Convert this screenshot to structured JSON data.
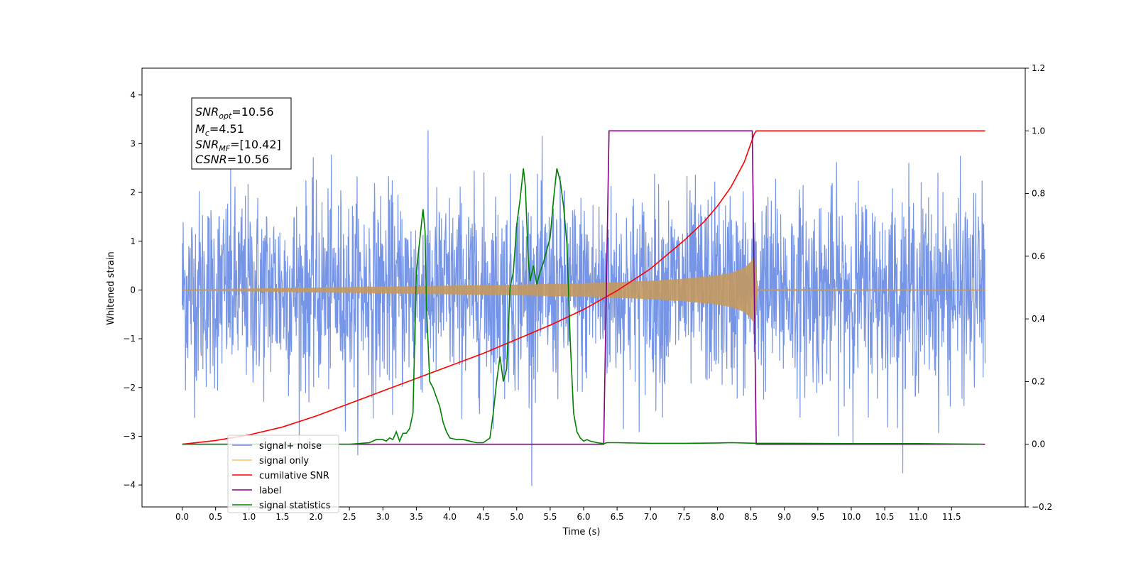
{
  "chart_data": {
    "type": "line",
    "title": "",
    "xlabel": "Time (s)",
    "ylabel": "Whitened strain",
    "xlim": [
      -0.6,
      12.6
    ],
    "ylim": [
      -4.45,
      4.55
    ],
    "y2lim": [
      -0.2,
      1.2
    ],
    "grid": false,
    "legend_position": "lower-left",
    "x_ticks": [
      "0.0",
      "0.5",
      "1.0",
      "1.5",
      "2.0",
      "2.5",
      "3.0",
      "3.5",
      "4.0",
      "4.5",
      "5.0",
      "5.5",
      "6.0",
      "6.5",
      "7.0",
      "7.5",
      "8.0",
      "8.5",
      "9.0",
      "9.5",
      "10.0",
      "10.5",
      "11.0",
      "11.5"
    ],
    "y_ticks": [
      "−4",
      "−3",
      "−2",
      "−1",
      "0",
      "1",
      "2",
      "3",
      "4"
    ],
    "y2_ticks": [
      "−0.2",
      "0.0",
      "0.2",
      "0.4",
      "0.6",
      "0.8",
      "1.0",
      "1.2"
    ],
    "annotation": {
      "snr_opt_label": "SNR",
      "snr_opt_sub": "opt",
      "snr_opt_value": "=10.56",
      "mc_label": "M",
      "mc_sub": "c",
      "mc_value": "=4.51",
      "snr_mf_label": "SNR",
      "snr_mf_sub": "MF",
      "snr_mf_value": "=[10.42]",
      "csnr_label": "CSNR",
      "csnr_value": "=10.56"
    },
    "series": [
      {
        "name": "signal+ noise",
        "axis": "left",
        "color": "#6f8fe6",
        "description_range": [
          0,
          12
        ],
        "noise_sigma": 1.0,
        "peak_extent": 4.1
      },
      {
        "name": "signal only",
        "axis": "left",
        "color": "#ffc266",
        "x": [
          0,
          1,
          2,
          3,
          4,
          5,
          6,
          6.5,
          7,
          7.5,
          8,
          8.2,
          8.4,
          8.5,
          8.55,
          8.58,
          8.6,
          12
        ],
        "amplitude": [
          0.01,
          0.03,
          0.05,
          0.07,
          0.09,
          0.11,
          0.14,
          0.16,
          0.19,
          0.23,
          0.3,
          0.35,
          0.45,
          0.58,
          0.68,
          0.4,
          0.02,
          0.01
        ]
      },
      {
        "name": "cumilative SNR",
        "axis": "right",
        "color": "#ff0000",
        "x": [
          0.0,
          0.5,
          1.0,
          1.5,
          2.0,
          2.5,
          3.0,
          3.5,
          4.0,
          4.5,
          5.0,
          5.5,
          6.0,
          6.5,
          7.0,
          7.5,
          7.8,
          8.0,
          8.2,
          8.3,
          8.4,
          8.45,
          8.5,
          8.55,
          8.58,
          8.6,
          12.0
        ],
        "values": [
          0.0,
          0.012,
          0.03,
          0.055,
          0.09,
          0.13,
          0.17,
          0.21,
          0.25,
          0.29,
          0.335,
          0.38,
          0.43,
          0.49,
          0.56,
          0.65,
          0.71,
          0.76,
          0.82,
          0.86,
          0.9,
          0.93,
          0.96,
          0.99,
          1.0,
          1.0,
          1.0
        ]
      },
      {
        "name": "label",
        "axis": "right",
        "color": "#800080",
        "x": [
          0.0,
          6.3,
          6.38,
          8.52,
          8.58,
          12.0
        ],
        "values": [
          0.0,
          0.0,
          1.0,
          1.0,
          0.0,
          0.0
        ]
      },
      {
        "name": "signal statistics",
        "axis": "right",
        "color": "#008000",
        "x": [
          0.0,
          0.5,
          1.0,
          1.5,
          2.0,
          2.5,
          2.8,
          2.9,
          3.0,
          3.05,
          3.1,
          3.15,
          3.2,
          3.25,
          3.3,
          3.35,
          3.4,
          3.45,
          3.5,
          3.55,
          3.6,
          3.63,
          3.65,
          3.7,
          3.75,
          3.8,
          3.85,
          3.9,
          3.95,
          4.0,
          4.1,
          4.2,
          4.3,
          4.4,
          4.5,
          4.6,
          4.65,
          4.7,
          4.75,
          4.8,
          4.85,
          4.9,
          4.95,
          5.0,
          5.05,
          5.1,
          5.13,
          5.17,
          5.2,
          5.25,
          5.3,
          5.35,
          5.4,
          5.45,
          5.5,
          5.55,
          5.6,
          5.65,
          5.7,
          5.75,
          5.8,
          5.85,
          5.9,
          5.95,
          6.0,
          6.05,
          6.1,
          6.2,
          6.3,
          6.35,
          6.5,
          7.0,
          7.5,
          8.0,
          8.2,
          8.4,
          8.6,
          9.0,
          10.0,
          11.0,
          11.95
        ],
        "values": [
          0.0,
          0.0,
          0.0,
          0.0,
          0.0,
          0.0,
          0.005,
          0.015,
          0.015,
          0.01,
          0.02,
          0.015,
          0.04,
          0.01,
          0.035,
          0.035,
          0.05,
          0.1,
          0.55,
          0.65,
          0.75,
          0.68,
          0.45,
          0.2,
          0.18,
          0.15,
          0.12,
          0.07,
          0.04,
          0.02,
          0.015,
          0.015,
          0.01,
          0.005,
          0.005,
          0.02,
          0.1,
          0.2,
          0.28,
          0.2,
          0.24,
          0.5,
          0.55,
          0.7,
          0.78,
          0.88,
          0.82,
          0.6,
          0.52,
          0.57,
          0.51,
          0.55,
          0.58,
          0.62,
          0.66,
          0.78,
          0.88,
          0.84,
          0.76,
          0.64,
          0.33,
          0.1,
          0.04,
          0.02,
          0.01,
          0.015,
          0.01,
          0.005,
          0.002,
          0.005,
          0.005,
          0.003,
          0.003,
          0.004,
          0.005,
          0.004,
          0.003,
          0.003,
          0.002,
          0.002,
          0.0
        ]
      }
    ]
  }
}
